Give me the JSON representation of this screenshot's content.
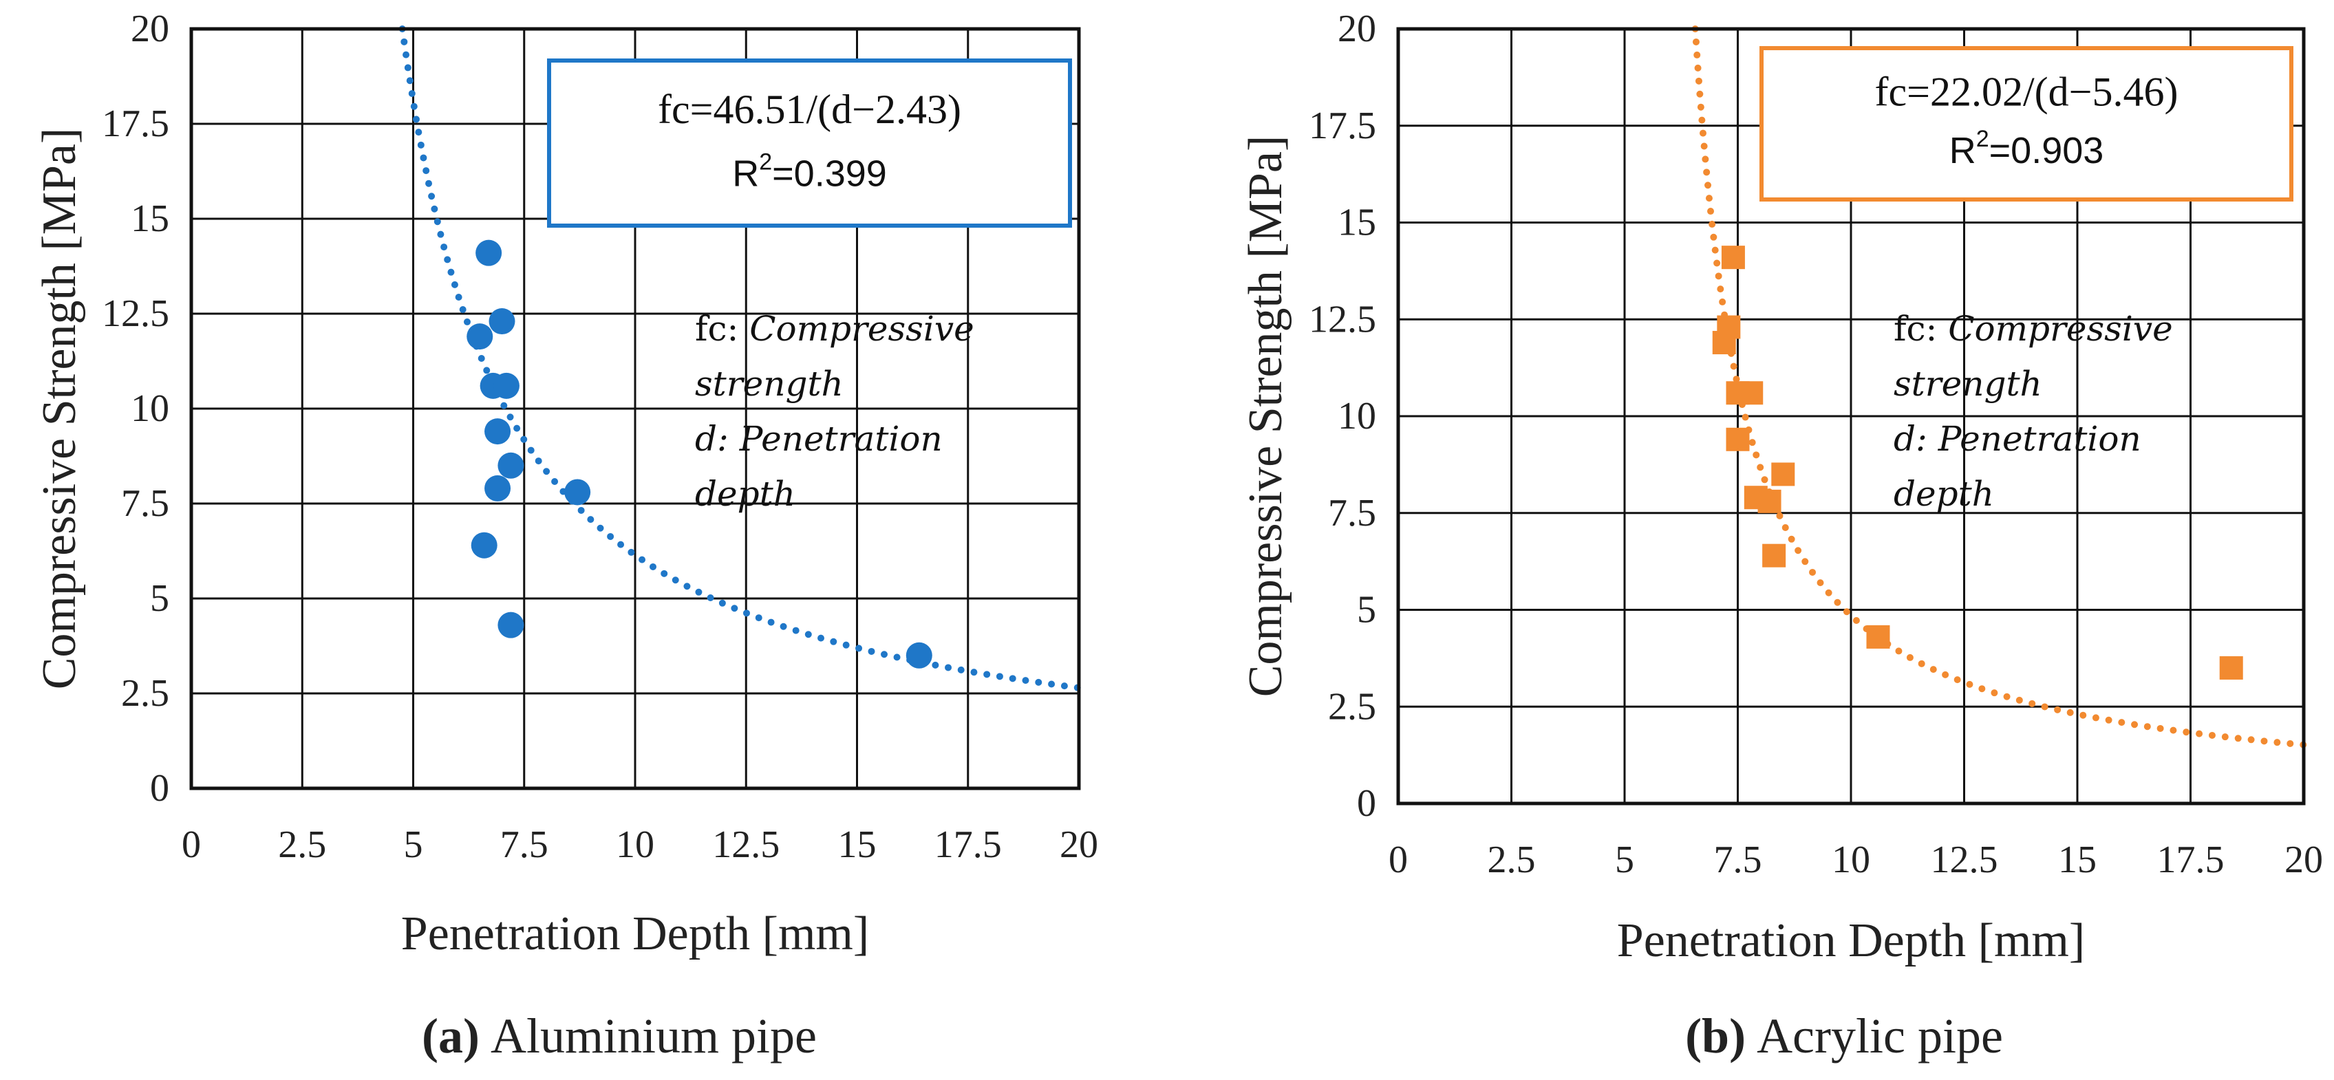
{
  "chart_data": [
    {
      "type": "scatter",
      "id": "a",
      "caption_letter": "(a)",
      "caption_text": "Aluminium pipe",
      "xlabel": "Penetration Depth [mm]",
      "ylabel": "Compressive Strength [MPa]",
      "xlim": [
        0,
        20
      ],
      "ylim": [
        0,
        20
      ],
      "x_ticks": [
        "0",
        "2.5",
        "5",
        "7.5",
        "10",
        "12.5",
        "15",
        "17.5",
        "20"
      ],
      "y_ticks": [
        "0",
        "2.5",
        "5",
        "7.5",
        "10",
        "12.5",
        "15",
        "17.5",
        "20"
      ],
      "grid": true,
      "color": "#1f77c8",
      "marker": "circle",
      "equation": "fc=46.51/(d−2.43)",
      "r2_label": "R",
      "r2_sup": "2",
      "r2_value": "=0.399",
      "note_lines": [
        {
          "prefix": "fc: ",
          "text": "Compressive"
        },
        {
          "prefix": "",
          "text": "strength"
        },
        {
          "prefix": "d: ",
          "text": "Penetration"
        },
        {
          "prefix": "",
          "text": "depth"
        }
      ],
      "fit": {
        "a": 46.51,
        "b": 2.43
      },
      "points": [
        {
          "x": 6.7,
          "y": 14.1
        },
        {
          "x": 6.5,
          "y": 11.9
        },
        {
          "x": 7.0,
          "y": 12.3
        },
        {
          "x": 6.8,
          "y": 10.6
        },
        {
          "x": 7.1,
          "y": 10.6
        },
        {
          "x": 6.9,
          "y": 9.4
        },
        {
          "x": 7.2,
          "y": 8.5
        },
        {
          "x": 6.9,
          "y": 7.9
        },
        {
          "x": 8.7,
          "y": 7.8
        },
        {
          "x": 6.6,
          "y": 6.4
        },
        {
          "x": 7.2,
          "y": 4.3
        },
        {
          "x": 16.4,
          "y": 3.5
        }
      ]
    },
    {
      "type": "scatter",
      "id": "b",
      "caption_letter": "(b)",
      "caption_text": "Acrylic pipe",
      "xlabel": "Penetration Depth [mm]",
      "ylabel": "Compressive Strength [MPa]",
      "xlim": [
        0,
        20
      ],
      "ylim": [
        0,
        20
      ],
      "x_ticks": [
        "0",
        "2.5",
        "5",
        "7.5",
        "10",
        "12.5",
        "15",
        "17.5",
        "20"
      ],
      "y_ticks": [
        "0",
        "2.5",
        "5",
        "7.5",
        "10",
        "12.5",
        "15",
        "17.5",
        "20"
      ],
      "grid": true,
      "color": "#f28a30",
      "marker": "square",
      "equation": "fc=22.02/(d−5.46)",
      "r2_label": "R",
      "r2_sup": "2",
      "r2_value": "=0.903",
      "note_lines": [
        {
          "prefix": "fc: ",
          "text": "Compressive"
        },
        {
          "prefix": "",
          "text": "strength"
        },
        {
          "prefix": "d: ",
          "text": "Penetration"
        },
        {
          "prefix": "",
          "text": "depth"
        }
      ],
      "fit": {
        "a": 22.02,
        "b": 5.46
      },
      "points": [
        {
          "x": 7.4,
          "y": 14.1
        },
        {
          "x": 7.3,
          "y": 12.3
        },
        {
          "x": 7.2,
          "y": 11.9
        },
        {
          "x": 7.5,
          "y": 10.6
        },
        {
          "x": 7.8,
          "y": 10.6
        },
        {
          "x": 7.5,
          "y": 9.4
        },
        {
          "x": 8.5,
          "y": 8.5
        },
        {
          "x": 7.9,
          "y": 7.9
        },
        {
          "x": 8.2,
          "y": 7.8
        },
        {
          "x": 8.3,
          "y": 6.4
        },
        {
          "x": 10.6,
          "y": 4.3
        },
        {
          "x": 18.4,
          "y": 3.5
        }
      ]
    }
  ]
}
